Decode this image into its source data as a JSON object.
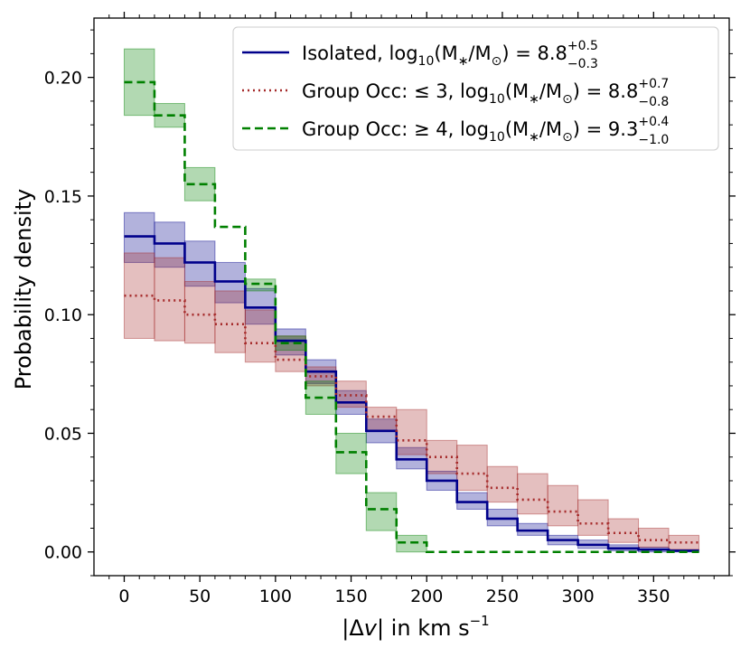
{
  "chart_data": {
    "type": "step-histogram",
    "xlabel_main": "|Δ",
    "xlabel_var": "v",
    "xlabel_rest": "| in km s",
    "xlabel_exp": "−1",
    "ylabel": "Probability density",
    "xlim": [
      -20,
      400
    ],
    "ylim": [
      -0.01,
      0.225
    ],
    "xticks": [
      0,
      50,
      100,
      150,
      200,
      250,
      300,
      350
    ],
    "xtick_labels": [
      "0",
      "50",
      "100",
      "150",
      "200",
      "250",
      "300",
      "350"
    ],
    "yticks": [
      0.0,
      0.05,
      0.1,
      0.15,
      0.2
    ],
    "ytick_labels": [
      "0.00",
      "0.05",
      "0.10",
      "0.15",
      "0.20"
    ],
    "bin_edges": [
      0,
      20,
      40,
      60,
      80,
      100,
      120,
      140,
      160,
      180,
      200,
      220,
      240,
      260,
      280,
      300,
      320,
      340,
      360,
      380
    ],
    "series": [
      {
        "key": "isolated",
        "name_prefix": "Isolated, log",
        "name_rest": "(M",
        "name_rest2": "/M",
        "name_rest3": ") = 8.8",
        "sup": "+0.5",
        "sub": "−0.3",
        "color": "#00008b",
        "fill": "#00008b",
        "dash": "",
        "values": [
          0.133,
          0.13,
          0.122,
          0.114,
          0.103,
          0.089,
          0.076,
          0.063,
          0.051,
          0.039,
          0.03,
          0.021,
          0.014,
          0.009,
          0.005,
          0.003,
          0.0015,
          0.001,
          0.0005
        ],
        "lower": [
          0.122,
          0.12,
          0.112,
          0.105,
          0.096,
          0.083,
          0.071,
          0.058,
          0.046,
          0.035,
          0.026,
          0.018,
          0.011,
          0.007,
          0.003,
          0.0015,
          0.0005,
          0.0,
          0.0
        ],
        "upper": [
          0.143,
          0.139,
          0.131,
          0.122,
          0.111,
          0.094,
          0.081,
          0.068,
          0.056,
          0.044,
          0.034,
          0.025,
          0.018,
          0.012,
          0.007,
          0.005,
          0.003,
          0.002,
          0.001
        ]
      },
      {
        "key": "group-low",
        "name_prefix": "Group Occ: ≤ 3, log",
        "name_rest": "(M",
        "name_rest2": "/M",
        "name_rest3": ") = 8.8",
        "sup": "+0.7",
        "sub": "−0.8",
        "color": "#a52a2a",
        "fill": "#a52a2a",
        "dash": "2,4",
        "values": [
          0.108,
          0.106,
          0.1,
          0.096,
          0.088,
          0.081,
          0.074,
          0.066,
          0.057,
          0.047,
          0.04,
          0.033,
          0.027,
          0.022,
          0.017,
          0.012,
          0.008,
          0.005,
          0.004
        ],
        "lower": [
          0.09,
          0.089,
          0.088,
          0.084,
          0.08,
          0.076,
          0.07,
          0.061,
          0.051,
          0.041,
          0.033,
          0.026,
          0.021,
          0.016,
          0.011,
          0.007,
          0.004,
          0.002,
          0.001
        ],
        "upper": [
          0.126,
          0.124,
          0.114,
          0.11,
          0.102,
          0.091,
          0.078,
          0.072,
          0.061,
          0.06,
          0.047,
          0.045,
          0.036,
          0.033,
          0.028,
          0.022,
          0.014,
          0.01,
          0.007
        ]
      },
      {
        "key": "group-high",
        "name_prefix": "Group Occ: ≥ 4, log",
        "name_rest": "(M",
        "name_rest2": "/M",
        "name_rest3": ") = 9.3",
        "sup": "+0.4",
        "sub": "−1.0",
        "color": "#008000",
        "fill": "#008000",
        "dash": "9,5",
        "values": [
          0.198,
          0.184,
          0.155,
          0.137,
          0.113,
          0.088,
          0.065,
          0.042,
          0.018,
          0.004,
          0.0,
          0.0,
          0.0,
          0.0,
          0.0,
          0.0,
          0.0,
          0.0,
          0.0
        ],
        "lower": [
          0.184,
          0.179,
          0.148,
          null,
          0.11,
          0.085,
          0.058,
          0.033,
          0.009,
          0.0,
          null,
          null,
          null,
          null,
          null,
          null,
          null,
          null,
          null
        ],
        "upper": [
          0.212,
          0.189,
          0.162,
          null,
          0.115,
          0.091,
          0.072,
          0.05,
          0.025,
          0.007,
          null,
          null,
          null,
          null,
          null,
          null,
          null,
          null,
          null
        ]
      }
    ]
  }
}
